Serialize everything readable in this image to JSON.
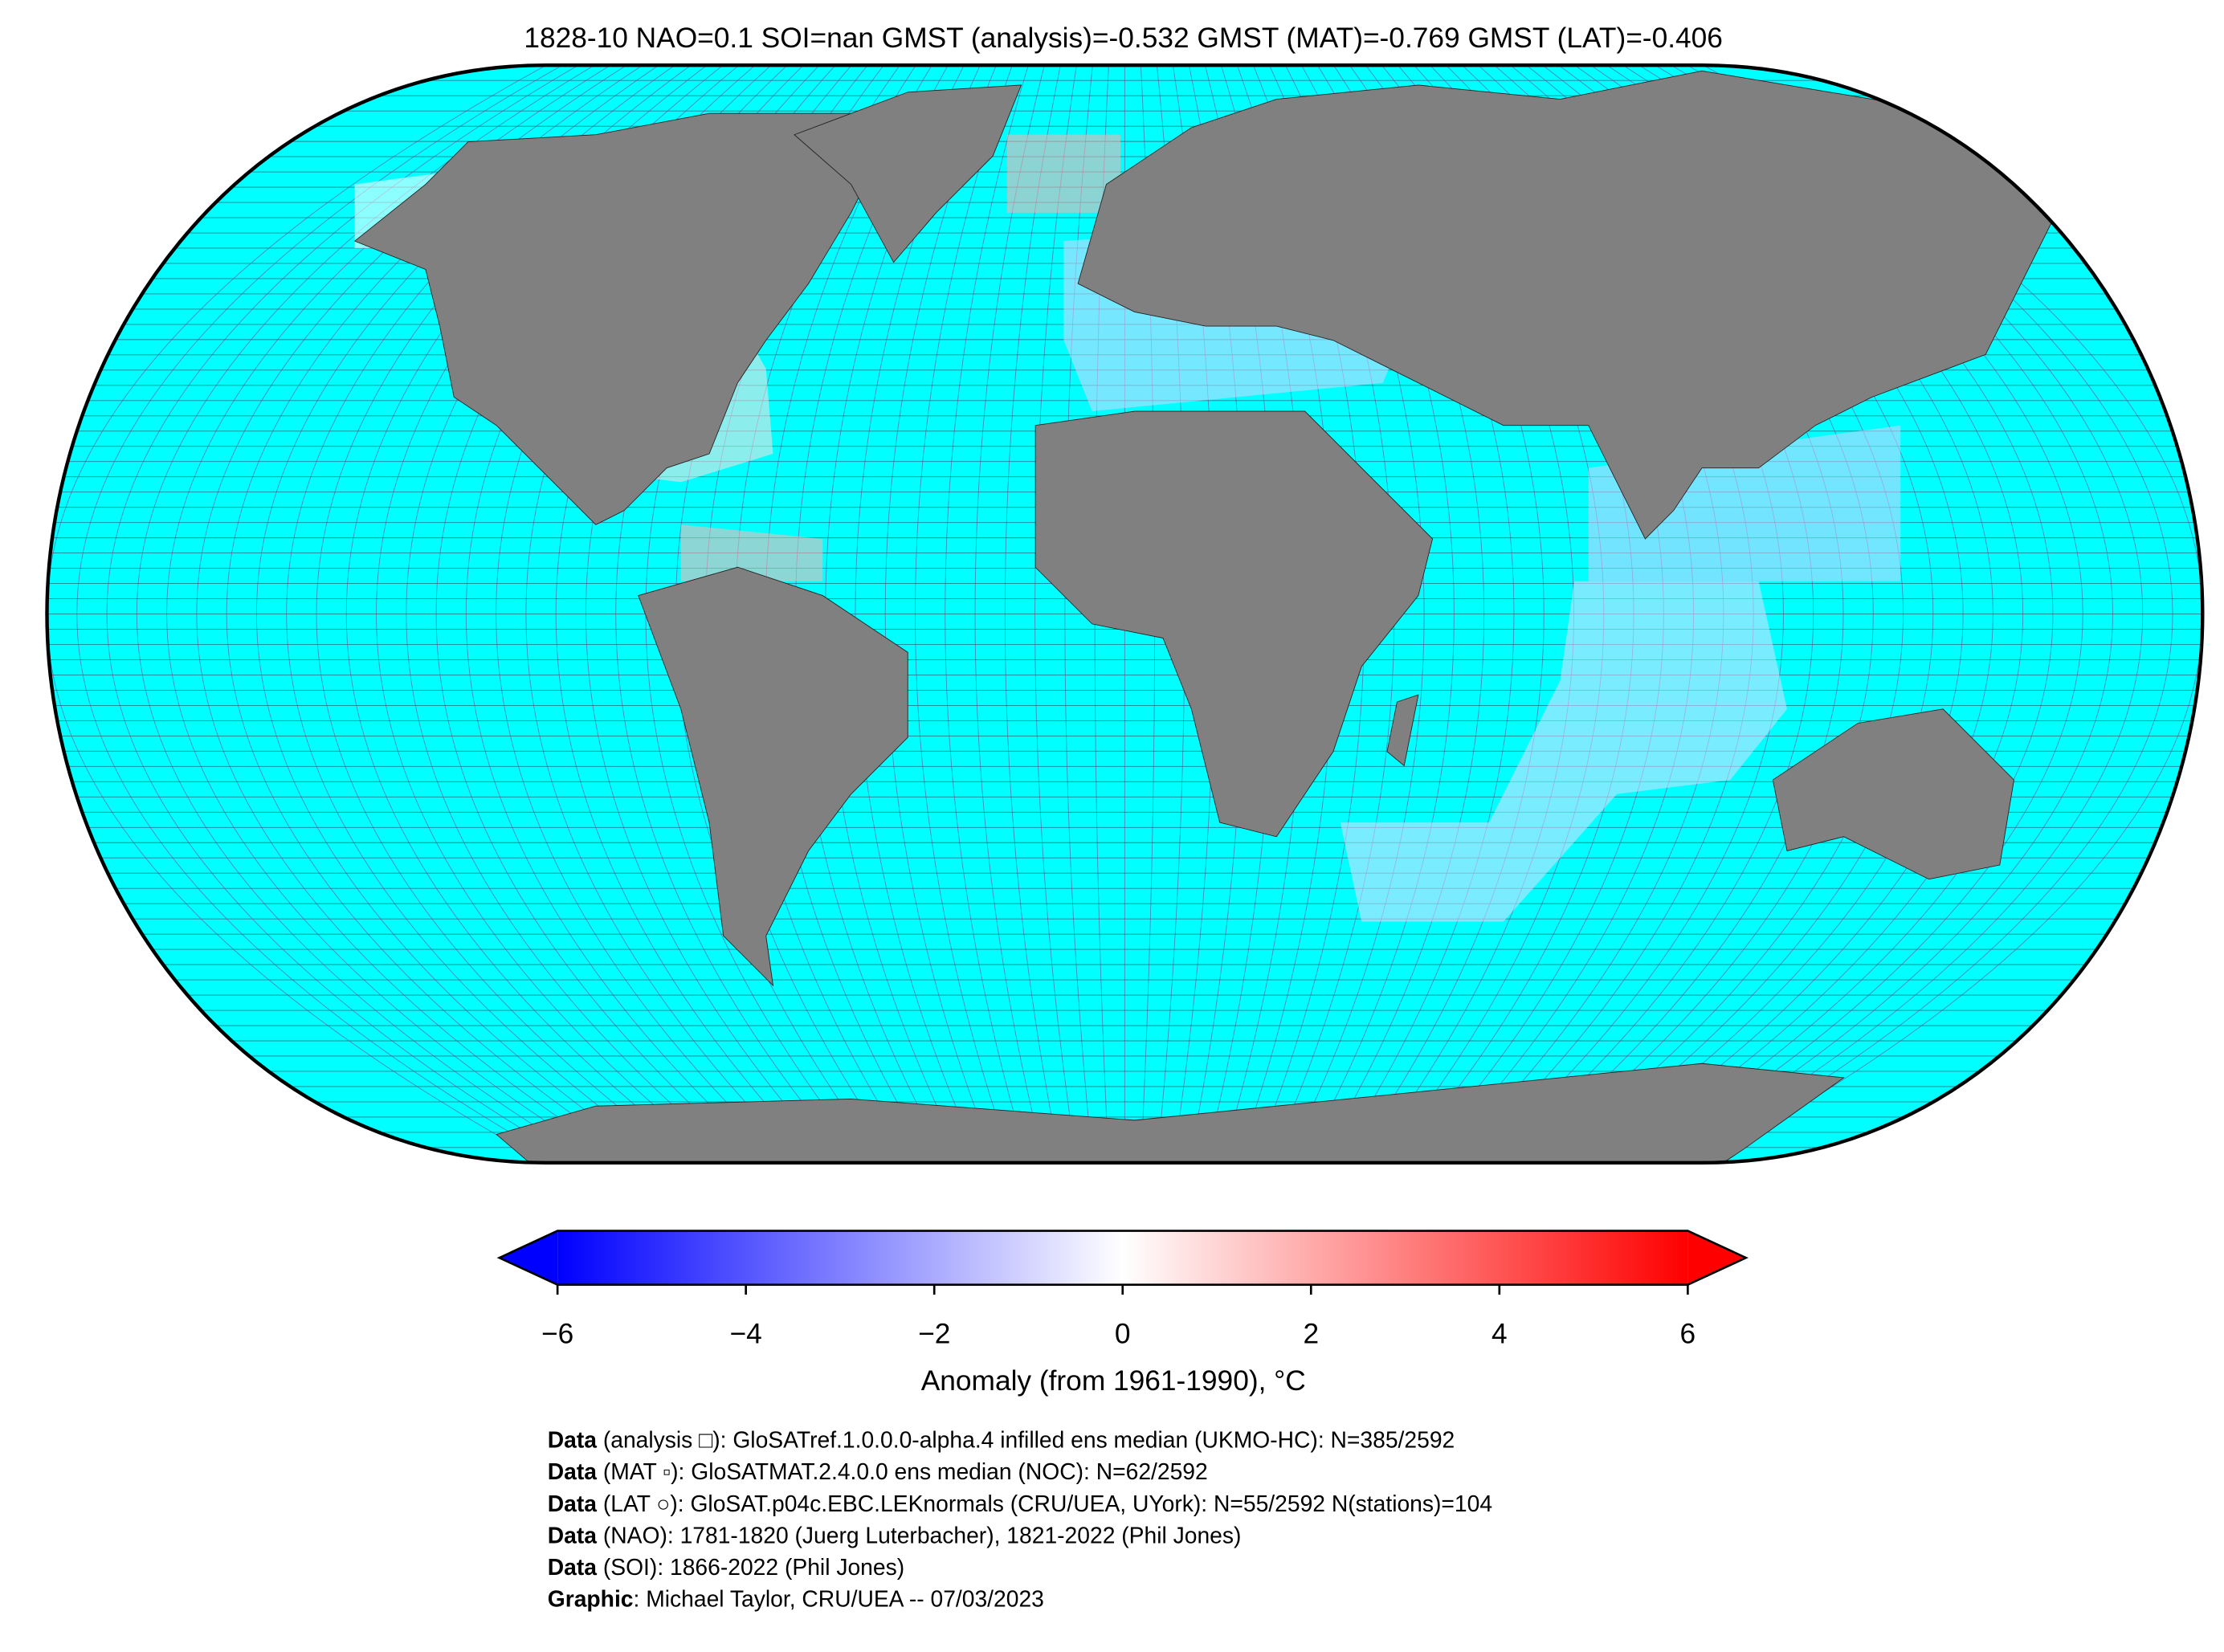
{
  "title": "1828-10 NAO=0.1 SOI=nan GMST (analysis)=-0.532 GMST (MAT)=-0.769 GMST (LAT)=-0.406",
  "colorbar": {
    "label": "Anomaly (from 1961-1990), °C",
    "lim": [
      -6,
      6
    ],
    "ticks": [
      {
        "value": -6,
        "label": "−6"
      },
      {
        "value": -4,
        "label": "−4"
      },
      {
        "value": -2,
        "label": "−2"
      },
      0,
      2,
      4,
      6
    ],
    "colors": [
      "#0000ff",
      "#ffffff",
      "#ff0000"
    ]
  },
  "credits": [
    {
      "bold": "Data",
      "text": " (analysis □): GloSATref.1.0.0.0-alpha.4 infilled ens median (UKMO-HC): N=385/2592"
    },
    {
      "bold": "Data",
      "text": " (MAT ▫): GloSATMAT.2.4.0.0 ens median (NOC): N=62/2592"
    },
    {
      "bold": "Data",
      "text": " (LAT ○): GloSAT.p04c.EBC.LEKnormals (CRU/UEA, UYork): N=55/2592 N(stations)=104"
    },
    {
      "bold": "Data",
      "text": " (NAO): 1781-1820 (Juerg Luterbacher), 1821-2022 (Phil Jones)"
    },
    {
      "bold": "Data",
      "text": " (SOI): 1866-2022 (Phil Jones)"
    },
    {
      "bold": "Graphic",
      "text": ": Michael Taylor, CRU/UEA -- 07/03/2023"
    }
  ]
}
